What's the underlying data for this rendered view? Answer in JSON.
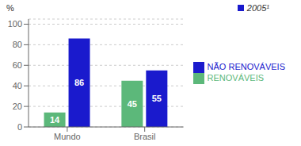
{
  "chart_data": {
    "type": "bar",
    "ylabel": "%",
    "annotation": "2005¹",
    "categories": [
      "Mundo",
      "Brasil"
    ],
    "series": [
      {
        "name": "RENOVÁVEIS",
        "color": "#5cb87a",
        "values": [
          14,
          45
        ]
      },
      {
        "name": "NÃO RENOVÁVEIS",
        "color": "#1a1acd",
        "values": [
          86,
          55
        ]
      }
    ],
    "ylim": [
      0,
      105
    ],
    "yticks": [
      0,
      20,
      40,
      60,
      80,
      100
    ],
    "grid": true,
    "legend": "right",
    "data_labels": true
  }
}
